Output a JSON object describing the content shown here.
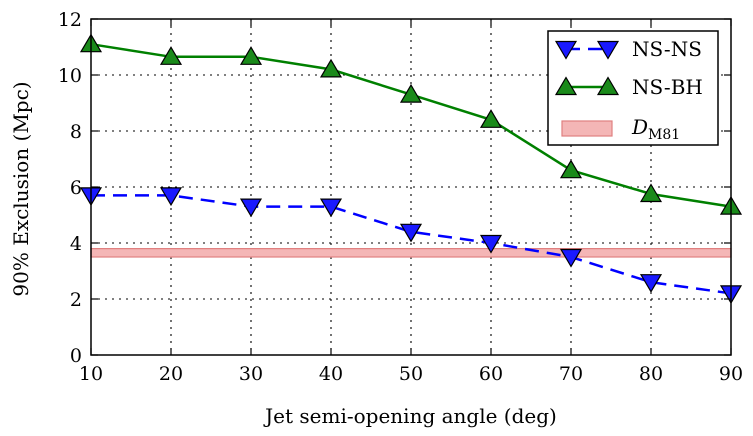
{
  "chart_data": {
    "type": "line",
    "xlabel": "Jet semi-opening angle (deg)",
    "ylabel": "90% Exclusion (Mpc)",
    "xlim": [
      10,
      90
    ],
    "ylim": [
      0,
      12
    ],
    "x_ticks": [
      10,
      20,
      30,
      40,
      50,
      60,
      70,
      80,
      90
    ],
    "y_ticks": [
      0,
      2,
      4,
      6,
      8,
      10,
      12
    ],
    "grid": true,
    "legend_position": "top-right",
    "x": [
      10,
      20,
      30,
      40,
      50,
      60,
      70,
      80,
      90
    ],
    "series": [
      {
        "name": "NS-NS",
        "values": [
          5.7,
          5.7,
          5.3,
          5.3,
          4.4,
          4.0,
          3.5,
          2.6,
          2.2
        ],
        "color": "#0000ff",
        "line_style": "dashed",
        "marker": "triangle-down",
        "marker_color": "#1a1aff"
      },
      {
        "name": "NS-BH",
        "values": [
          11.1,
          10.65,
          10.65,
          10.2,
          9.3,
          8.4,
          6.6,
          5.75,
          5.3
        ],
        "color": "#008000",
        "line_style": "solid",
        "marker": "triangle-up",
        "marker_color": "#1a8a1a"
      }
    ],
    "band": {
      "name": "D",
      "name_subscript": "M81",
      "y_low": 3.5,
      "y_high": 3.8,
      "fill": "#f4b6b6",
      "edge": "#e08080"
    }
  }
}
